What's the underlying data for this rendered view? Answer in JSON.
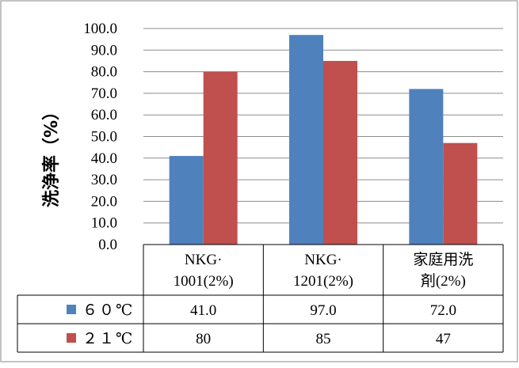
{
  "chart_data": {
    "type": "bar",
    "ylabel": "洗浄率（%）",
    "ylim": [
      0,
      100
    ],
    "yticks": [
      "0.0",
      "10.0",
      "20.0",
      "30.0",
      "40.0",
      "50.0",
      "60.0",
      "70.0",
      "80.0",
      "90.0",
      "100.0"
    ],
    "grid": true,
    "categories": [
      [
        "NKG·",
        "1001(2%)"
      ],
      [
        "NKG·",
        "1201(2%)"
      ],
      [
        "家庭用洗",
        "剤(2%)"
      ]
    ],
    "series": [
      {
        "name": "６０℃",
        "color": "#4f81bd",
        "values": [
          41.0,
          97.0,
          72.0
        ],
        "labels": [
          "41.0",
          "97.0",
          "72.0"
        ]
      },
      {
        "name": "２１℃",
        "color": "#c0504d",
        "values": [
          80,
          85,
          47
        ],
        "labels": [
          "80",
          "85",
          "47"
        ]
      }
    ],
    "legend": "data-table"
  }
}
